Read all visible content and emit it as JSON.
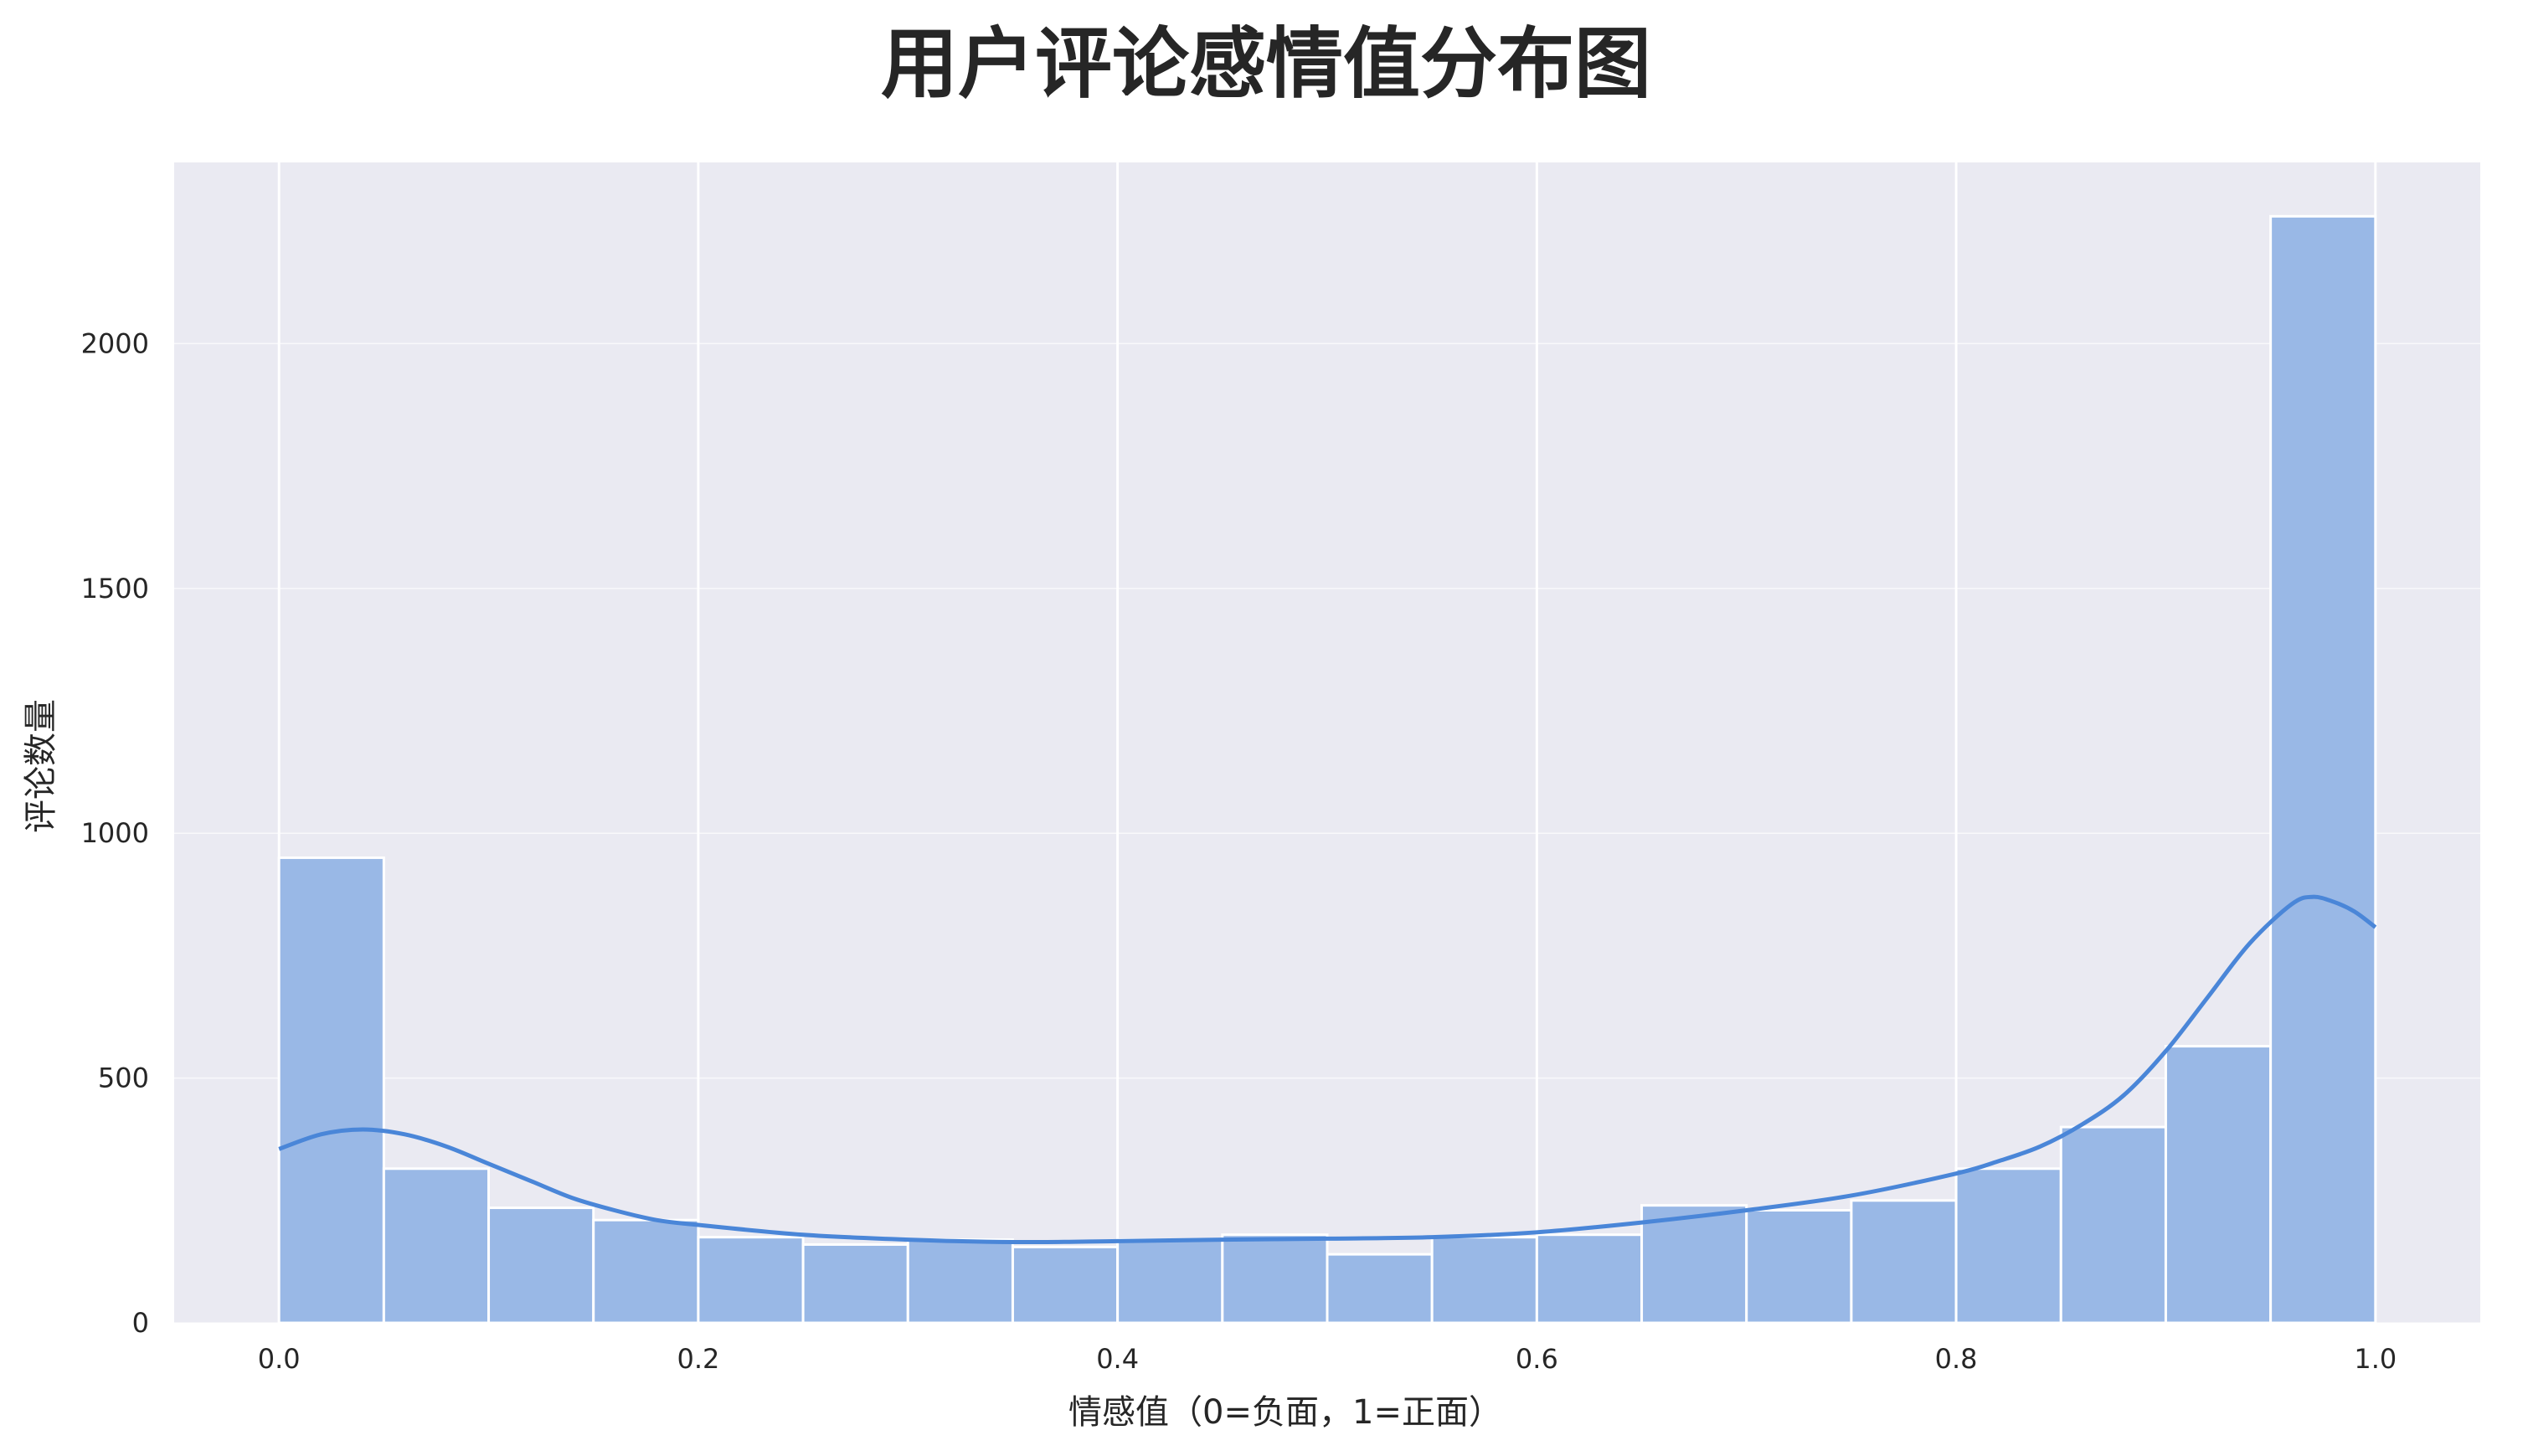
{
  "chart_data": {
    "type": "bar",
    "title": "用户评论感情值分布图",
    "xlabel": "情感值（0=负面，1=正面）",
    "ylabel": "评论数量",
    "xlim": [
      -0.05,
      1.05
    ],
    "ylim": [
      0,
      2370
    ],
    "x_ticks": [
      0.0,
      0.2,
      0.4,
      0.6,
      0.8,
      1.0
    ],
    "x_tick_labels": [
      "0.0",
      "0.2",
      "0.4",
      "0.6",
      "0.8",
      "1.0"
    ],
    "y_ticks": [
      0,
      500,
      1000,
      1500,
      2000
    ],
    "y_tick_labels": [
      "0",
      "500",
      "1000",
      "1500",
      "2000"
    ],
    "grid": true,
    "bin_edges": [
      0.0,
      0.05,
      0.1,
      0.15,
      0.2,
      0.25,
      0.3,
      0.35,
      0.4,
      0.45,
      0.5,
      0.55,
      0.6,
      0.65,
      0.7,
      0.75,
      0.8,
      0.85,
      0.9,
      0.95,
      1.0
    ],
    "values": [
      950,
      315,
      235,
      210,
      175,
      160,
      170,
      155,
      170,
      180,
      140,
      175,
      180,
      240,
      230,
      250,
      315,
      400,
      565,
      2260
    ],
    "kde": {
      "x": [
        0.0,
        0.02,
        0.04,
        0.06,
        0.08,
        0.1,
        0.12,
        0.14,
        0.16,
        0.18,
        0.2,
        0.25,
        0.3,
        0.35,
        0.4,
        0.45,
        0.5,
        0.55,
        0.6,
        0.65,
        0.7,
        0.75,
        0.8,
        0.82,
        0.84,
        0.86,
        0.88,
        0.9,
        0.92,
        0.94,
        0.96,
        0.97,
        0.98,
        0.99,
        1.0
      ],
      "y": [
        355,
        385,
        395,
        385,
        360,
        325,
        290,
        255,
        230,
        210,
        200,
        180,
        170,
        165,
        167,
        170,
        172,
        175,
        185,
        205,
        230,
        260,
        305,
        330,
        360,
        405,
        465,
        555,
        665,
        775,
        855,
        870,
        860,
        840,
        808
      ]
    },
    "colors": {
      "background": "#eaeaf2",
      "bar": "#99b8e6",
      "bar_edge": "#ffffff",
      "kde_line": "#4a86d8",
      "grid": "#ffffff"
    }
  }
}
